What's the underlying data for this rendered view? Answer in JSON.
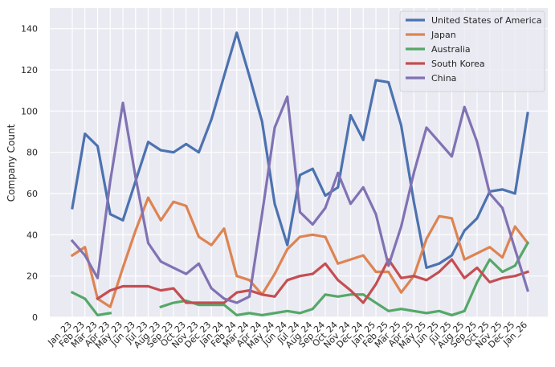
{
  "chart_data": {
    "type": "line",
    "title": "",
    "xlabel": "",
    "ylabel": "Company Count",
    "ylim": [
      0,
      150
    ],
    "yticks": [
      0,
      20,
      40,
      60,
      80,
      100,
      120,
      140
    ],
    "grid": true,
    "legend_position": "top-right",
    "x": [
      "Jan_23",
      "Feb_23",
      "Mar_23",
      "Apr_23",
      "May_23",
      "Jun_23",
      "Jul_23",
      "Aug_23",
      "Sep_23",
      "Oct_23",
      "Nov_23",
      "Dec_23",
      "Jan_24",
      "Feb_24",
      "Mar_24",
      "Apr_24",
      "May_24",
      "Jun_24",
      "Jul_24",
      "Aug_24",
      "Sep_24",
      "Oct_24",
      "Nov_24",
      "Dec_24",
      "Jan_25",
      "Feb_25",
      "Mar_25",
      "Apr_25",
      "May_25",
      "Jun_25",
      "Jul_25",
      "Aug_25",
      "Sep_25",
      "Oct_25",
      "Nov_25",
      "Dec_25",
      "Jan_26"
    ],
    "series": [
      {
        "name": "United States of America",
        "color": "#4c72b0",
        "values": [
          53,
          89,
          83,
          50,
          47,
          66,
          85,
          81,
          80,
          84,
          80,
          96,
          117,
          138,
          117,
          95,
          55,
          35,
          69,
          72,
          59,
          63,
          98,
          86,
          115,
          114,
          93,
          56,
          24,
          26,
          30,
          42,
          48,
          61,
          62,
          60,
          99
        ]
      },
      {
        "name": "Japan",
        "color": "#dd8452",
        "values": [
          30,
          34,
          9,
          5,
          24,
          42,
          58,
          47,
          56,
          54,
          39,
          35,
          43,
          20,
          18,
          11,
          21,
          33,
          39,
          40,
          39,
          26,
          28,
          30,
          22,
          22,
          12,
          20,
          38,
          49,
          48,
          28,
          31,
          34,
          29,
          44,
          36
        ]
      },
      {
        "name": "Australia",
        "color": "#55a868",
        "values": [
          12,
          9,
          1,
          2,
          null,
          null,
          null,
          5,
          7,
          8,
          6,
          6,
          6,
          1,
          2,
          1,
          2,
          3,
          2,
          4,
          11,
          10,
          11,
          11,
          7,
          3,
          4,
          3,
          2,
          3,
          1,
          3,
          17,
          28,
          22,
          25,
          36
        ]
      },
      {
        "name": "South Korea",
        "color": "#c44e52",
        "values": [
          null,
          null,
          9,
          13,
          15,
          15,
          15,
          13,
          14,
          7,
          7,
          7,
          7,
          12,
          13,
          11,
          10,
          18,
          20,
          21,
          26,
          18,
          13,
          7,
          16,
          28,
          19,
          20,
          18,
          22,
          28,
          19,
          24,
          17,
          19,
          20,
          22
        ]
      },
      {
        "name": "China",
        "color": "#8172b3",
        "values": [
          37,
          30,
          19,
          66,
          104,
          68,
          36,
          27,
          24,
          21,
          26,
          14,
          9,
          7,
          10,
          50,
          92,
          107,
          51,
          45,
          53,
          70,
          55,
          63,
          50,
          25,
          44,
          70,
          92,
          85,
          78,
          102,
          85,
          60,
          53,
          33,
          13
        ]
      }
    ]
  }
}
